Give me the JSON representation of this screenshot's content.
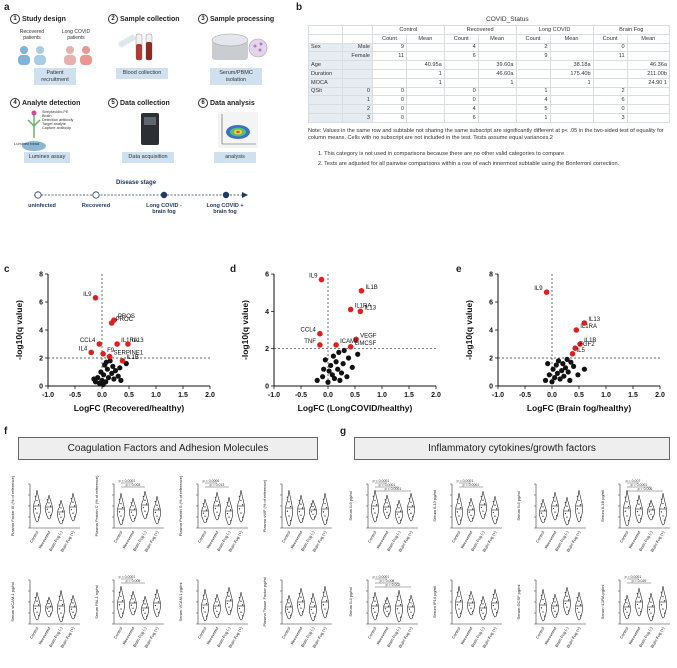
{
  "panel_a": {
    "label": "a",
    "steps": [
      {
        "num": "1",
        "title": "Study design",
        "caption": "Patient recruitment"
      },
      {
        "num": "2",
        "title": "Sample collection",
        "caption": "Blood collection"
      },
      {
        "num": "3",
        "title": "Sample processing",
        "caption": "Serum/PBMC isolation"
      },
      {
        "num": "4",
        "title": "Analyte detection",
        "caption": "Luminex assay"
      },
      {
        "num": "5",
        "title": "Data collection",
        "caption": "Data acquisition"
      },
      {
        "num": "6",
        "title": "Data analysis",
        "caption": "analysis"
      }
    ],
    "recovered_label": "Recovered patients",
    "longcovid_label": "Long COVID patients",
    "bead_labels": [
      "Streptavidin-PE",
      "Biotin",
      "Detection antibody",
      "Target analyte",
      "Capture antibody"
    ],
    "luminex_bead": "Luminex bead",
    "disease_stage": {
      "title": "Disease stage",
      "stages": [
        "uninfected",
        "Recovered",
        "Long COVID - brain fog",
        "Long COVID + brain fog"
      ]
    }
  },
  "panel_b": {
    "label": "b",
    "title": "COVID_Status",
    "groups": [
      "Control",
      "Recovered",
      "Long COVID",
      "Brain Fog"
    ],
    "subheaders": [
      "Count",
      "Mean"
    ],
    "rows": [
      {
        "g": "Sex",
        "s": "Male",
        "v": [
          "9",
          "",
          "4",
          "",
          "2",
          "",
          "0",
          ""
        ]
      },
      {
        "g": "",
        "s": "Female",
        "v": [
          "11",
          "",
          "6",
          "",
          "9",
          "",
          "11",
          ""
        ]
      },
      {
        "g": "Age",
        "s": "",
        "v": [
          "",
          "40.95a",
          "",
          "39.60a",
          "",
          "38.18a",
          "",
          "46.36a"
        ]
      },
      {
        "g": "Duration",
        "s": "",
        "v": [
          "",
          "1",
          "",
          "46.60a",
          "",
          "175.40b",
          "",
          "211.00b"
        ]
      },
      {
        "g": "MOCA",
        "s": "",
        "v": [
          "",
          "1",
          "",
          "1",
          "",
          "1",
          "",
          "24.90 1"
        ]
      },
      {
        "g": "QSit",
        "s": "0",
        "v": [
          "0",
          "",
          "0",
          "",
          "1",
          "",
          "2",
          ""
        ]
      },
      {
        "g": "",
        "s": "1",
        "v": [
          "0",
          "",
          "0",
          "",
          "4",
          "",
          "6",
          ""
        ]
      },
      {
        "g": "",
        "s": "2",
        "v": [
          "0",
          "",
          "4",
          "",
          "5",
          "",
          "0",
          ""
        ]
      },
      {
        "g": "",
        "s": "3",
        "v": [
          "0",
          "",
          "6",
          "",
          "1",
          "",
          "3",
          ""
        ]
      }
    ],
    "note": "Note: Values in the same row and subtable not sharing the same subscript are significantly different at p< .05 in the two-sided test of equality for column means. Cells with no subscript are not included in the test. Tests assume equal variances.2",
    "footnote1": "1. This category is not used in comparisons because there are no other valid categories to compare",
    "footnote2": "2. Tests are adjusted for all pairwise comparisons within a row of each innermost subtable using the Bonferroni correction."
  },
  "chart_data": [
    {
      "panel": "c",
      "type": "scatter",
      "xlabel": "LogFC (Recovered/healthy)",
      "ylabel": "-log10(q value)",
      "xlim": [
        -1.0,
        2.0
      ],
      "ylim": [
        0,
        8
      ],
      "xticks": [
        "-1.0",
        "-0.5",
        "0.0",
        "0.5",
        "1.0",
        "1.5",
        "2.0"
      ],
      "yticks": [
        "0",
        "2",
        "4",
        "6",
        "8"
      ],
      "threshold_y": 2,
      "significant": [
        {
          "label": "IL9",
          "x": -0.12,
          "y": 6.3
        },
        {
          "label": "PROS",
          "x": 0.22,
          "y": 4.7
        },
        {
          "label": "PROC",
          "x": 0.18,
          "y": 4.5
        },
        {
          "label": "CCL4",
          "x": -0.05,
          "y": 3.0
        },
        {
          "label": "IL1RA",
          "x": 0.28,
          "y": 3.0
        },
        {
          "label": "IL13",
          "x": 0.48,
          "y": 3.0
        },
        {
          "label": "IL4",
          "x": -0.2,
          "y": 2.4
        },
        {
          "label": "F9",
          "x": 0.02,
          "y": 2.3
        },
        {
          "label": "SERPINE1",
          "x": 0.14,
          "y": 2.1
        },
        {
          "label": "IL1B",
          "x": 0.38,
          "y": 1.8
        }
      ],
      "nonsignificant": [
        [
          -0.12,
          0.3
        ],
        [
          -0.08,
          0.6
        ],
        [
          -0.05,
          0.2
        ],
        [
          -0.02,
          1.0
        ],
        [
          0.0,
          0.4
        ],
        [
          0.03,
          0.8
        ],
        [
          0.05,
          1.5
        ],
        [
          0.07,
          0.3
        ],
        [
          0.1,
          1.2
        ],
        [
          0.12,
          0.6
        ],
        [
          0.15,
          1.8
        ],
        [
          0.18,
          0.9
        ],
        [
          0.2,
          1.4
        ],
        [
          0.22,
          0.5
        ],
        [
          0.25,
          1.1
        ],
        [
          0.3,
          0.7
        ],
        [
          0.33,
          1.3
        ],
        [
          0.02,
          0.1
        ],
        [
          -0.15,
          0.5
        ],
        [
          0.08,
          1.7
        ],
        [
          0.45,
          1.6
        ],
        [
          0.35,
          0.4
        ]
      ]
    },
    {
      "panel": "d",
      "type": "scatter",
      "xlabel": "LogFC (LongCOVID/healthy)",
      "ylabel": "-log10(q value)",
      "xlim": [
        -1.0,
        2.0
      ],
      "ylim": [
        0,
        6
      ],
      "xticks": [
        "-1.0",
        "-0.5",
        "0.0",
        "0.5",
        "1.0",
        "1.5",
        "2.0"
      ],
      "yticks": [
        "0",
        "2",
        "4",
        "6"
      ],
      "threshold_y": 2,
      "significant": [
        {
          "label": "IL9",
          "x": -0.12,
          "y": 5.7
        },
        {
          "label": "IL1B",
          "x": 0.62,
          "y": 5.1
        },
        {
          "label": "IL1RA",
          "x": 0.42,
          "y": 4.1
        },
        {
          "label": "IL13",
          "x": 0.6,
          "y": 4.0
        },
        {
          "label": "CCL4",
          "x": -0.15,
          "y": 2.8
        },
        {
          "label": "VEGF",
          "x": 0.52,
          "y": 2.5
        },
        {
          "label": "TNF",
          "x": -0.15,
          "y": 2.2
        },
        {
          "label": "ICAM1",
          "x": 0.15,
          "y": 2.2
        },
        {
          "label": "GMCSF",
          "x": 0.42,
          "y": 2.1
        }
      ],
      "nonsignificant": [
        [
          -0.2,
          0.3
        ],
        [
          -0.1,
          0.5
        ],
        [
          -0.05,
          1.4
        ],
        [
          0.0,
          0.2
        ],
        [
          0.02,
          0.8
        ],
        [
          0.05,
          1.1
        ],
        [
          0.08,
          0.6
        ],
        [
          0.1,
          1.6
        ],
        [
          0.12,
          0.4
        ],
        [
          0.15,
          1.3
        ],
        [
          0.18,
          0.9
        ],
        [
          0.2,
          1.8
        ],
        [
          0.25,
          0.7
        ],
        [
          0.28,
          1.2
        ],
        [
          0.3,
          1.9
        ],
        [
          0.35,
          0.5
        ],
        [
          0.38,
          1.5
        ],
        [
          0.45,
          1.0
        ],
        [
          -0.08,
          0.9
        ],
        [
          0.22,
          0.3
        ],
        [
          0.55,
          1.7
        ]
      ]
    },
    {
      "panel": "e",
      "type": "scatter",
      "xlabel": "LogFC (Brain fog/healthy)",
      "ylabel": "-log10(q value)",
      "xlim": [
        -1.0,
        2.0
      ],
      "ylim": [
        0,
        8
      ],
      "xticks": [
        "-1.0",
        "-0.5",
        "0.0",
        "0.5",
        "1.0",
        "1.5",
        "2.0"
      ],
      "yticks": [
        "0",
        "2",
        "4",
        "6",
        "8"
      ],
      "threshold_y": 2,
      "significant": [
        {
          "label": "IL9",
          "x": -0.1,
          "y": 6.7
        },
        {
          "label": "IL13",
          "x": 0.6,
          "y": 4.5
        },
        {
          "label": "IL1RA",
          "x": 0.45,
          "y": 4.0
        },
        {
          "label": "IL1B",
          "x": 0.52,
          "y": 3.0
        },
        {
          "label": "FGF2",
          "x": 0.43,
          "y": 2.7
        },
        {
          "label": "IL5",
          "x": 0.38,
          "y": 2.3
        }
      ],
      "nonsignificant": [
        [
          -0.12,
          0.4
        ],
        [
          -0.05,
          0.8
        ],
        [
          0.0,
          0.3
        ],
        [
          0.02,
          1.2
        ],
        [
          0.05,
          0.6
        ],
        [
          0.08,
          1.5
        ],
        [
          0.1,
          0.9
        ],
        [
          0.12,
          1.8
        ],
        [
          0.15,
          0.5
        ],
        [
          0.18,
          1.1
        ],
        [
          0.2,
          1.6
        ],
        [
          0.22,
          0.7
        ],
        [
          0.25,
          1.3
        ],
        [
          0.28,
          1.9
        ],
        [
          0.3,
          1.0
        ],
        [
          0.33,
          0.4
        ],
        [
          0.4,
          1.4
        ],
        [
          0.48,
          0.8
        ],
        [
          -0.08,
          1.6
        ],
        [
          0.35,
          1.7
        ],
        [
          0.6,
          1.2
        ]
      ]
    }
  ],
  "panel_f": {
    "label": "f",
    "banner": "Coagulation Factors and Adhesion Molecules",
    "group_labels": [
      "Control",
      "Recovered",
      "Brain Fog (-)",
      "Brain Fog (+)"
    ],
    "plots": [
      {
        "ylabel": "Plasma Factor IX (% of reference)",
        "pvals": []
      },
      {
        "ylabel": "Plasma Protein C (% of reference)",
        "pvals": [
          "p < 0.0001",
          "p = 0.003"
        ]
      },
      {
        "ylabel": "Plasma Protein S (% of reference)",
        "pvals": [
          "p = 0.0006",
          "p = 0.013"
        ]
      },
      {
        "ylabel": "Plasma vWF (% of reference)",
        "pvals": []
      },
      {
        "ylabel": "Serum sICAM-1 pg/ml",
        "pvals": []
      },
      {
        "ylabel": "Serum PAI-1 ng/ml",
        "pvals": [
          "p = 0.0001",
          "p = 0.005"
        ]
      },
      {
        "ylabel": "Serum VCAM-1 pg/ml",
        "pvals": []
      },
      {
        "ylabel": "Plasma Tissue Factor pg/ml",
        "pvals": []
      }
    ]
  },
  "panel_g": {
    "label": "g",
    "banner": "Inflammatory cytokines/growth factors",
    "group_labels": [
      "Control",
      "Recovered",
      "Brain Fog (-)",
      "Brain Fog (+)"
    ],
    "plots": [
      {
        "ylabel": "Serum IL9 pg/ml",
        "pvals": [
          "p < 0.0001",
          "p < 0.0001",
          "p < 0.0001"
        ]
      },
      {
        "ylabel": "Serum IL13 pg/ml",
        "pvals": [
          "p = 0.0001",
          "p = 0.0001"
        ]
      },
      {
        "ylabel": "Serum IL5 pg/ml",
        "pvals": []
      },
      {
        "ylabel": "Serum IL1B pg/ml",
        "pvals": [
          "p = 0.007",
          "p = 0.0001",
          "p = 0.006"
        ]
      },
      {
        "ylabel": "Serum IL4 pg/ml",
        "pvals": [
          "p = 0.0001",
          "p = 0.008",
          "p = 0.002"
        ]
      },
      {
        "ylabel": "Serum IP10 pg/ml",
        "pvals": []
      },
      {
        "ylabel": "Serum GCSF pg/ml",
        "pvals": []
      },
      {
        "ylabel": "Serum IL1RA pg/ml",
        "pvals": [
          "p = 0.0001",
          "p = 0.029"
        ]
      }
    ]
  }
}
